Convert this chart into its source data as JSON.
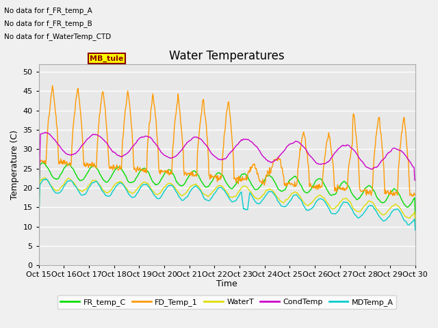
{
  "title": "Water Temperatures",
  "xlabel": "Time",
  "ylabel": "Temperature (C)",
  "ylim": [
    0,
    52
  ],
  "yticks": [
    0,
    5,
    10,
    15,
    20,
    25,
    30,
    35,
    40,
    45,
    50
  ],
  "x_labels": [
    "Oct 15",
    "Oct 16",
    "Oct 17",
    "Oct 18",
    "Oct 19",
    "Oct 20",
    "Oct 21",
    "Oct 22",
    "Oct 23",
    "Oct 24",
    "Oct 25",
    "Oct 26",
    "Oct 27",
    "Oct 28",
    "Oct 29",
    "Oct 30"
  ],
  "colors": {
    "FR_temp_C": "#00dd00",
    "FD_Temp_1": "#ff9900",
    "WaterT": "#dddd00",
    "CondTemp": "#cc00cc",
    "MDTemp_A": "#00cccc"
  },
  "annotations": [
    "No data for f_FR_temp_A",
    "No data for f_FR_temp_B",
    "No data for f_WaterTemp_CTD"
  ],
  "mb_tule_label": "MB_tule",
  "background_color": "#e8e8e8",
  "fig_bg": "#f0f0f0",
  "legend_items": [
    {
      "label": "FR_temp_C",
      "color": "#00dd00"
    },
    {
      "label": "FD_Temp_1",
      "color": "#ff9900"
    },
    {
      "label": "WaterT",
      "color": "#dddd00"
    },
    {
      "label": "CondTemp",
      "color": "#cc00cc"
    },
    {
      "label": "MDTemp_A",
      "color": "#00cccc"
    }
  ]
}
